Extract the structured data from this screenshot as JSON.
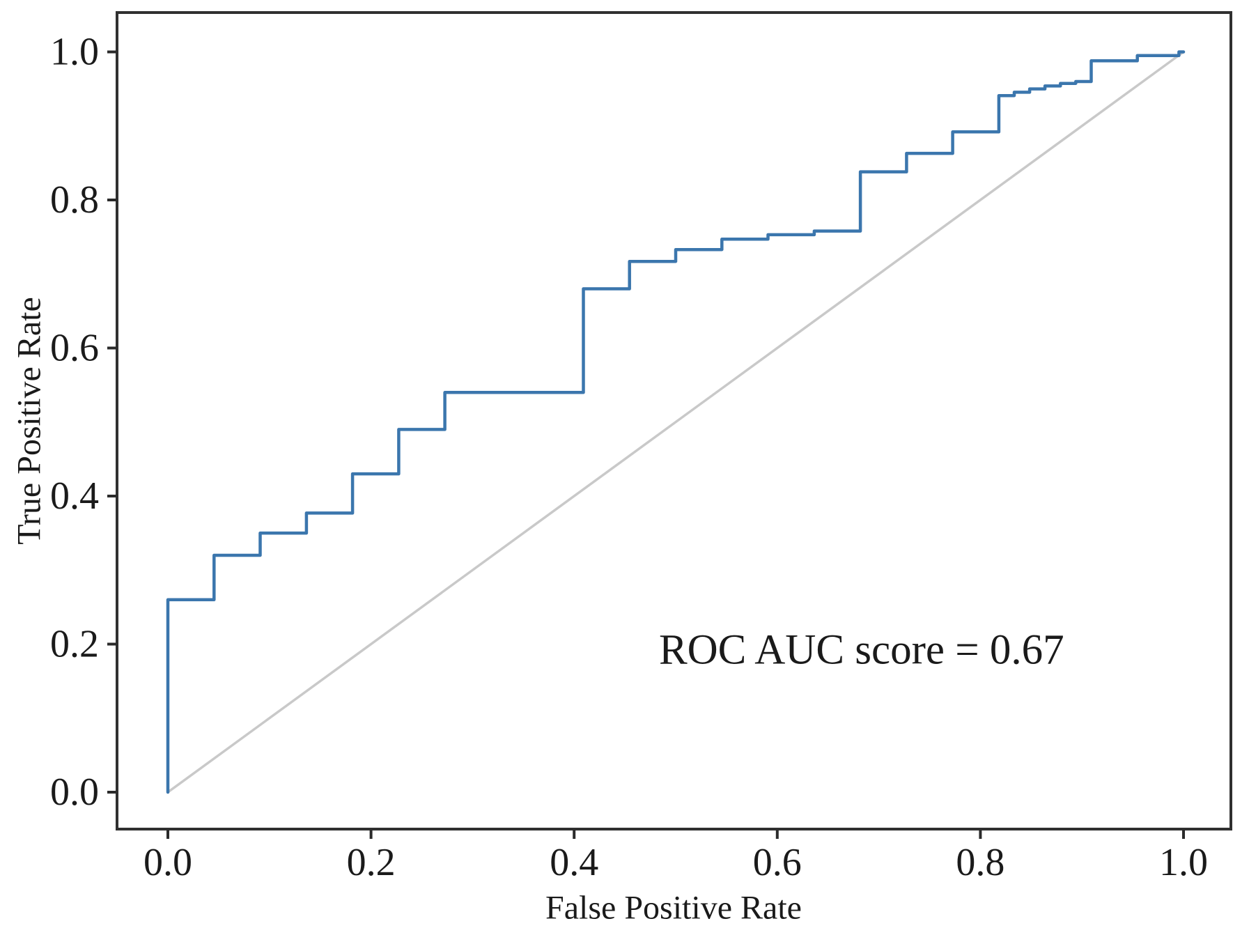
{
  "figure": {
    "background": "#ffffff",
    "frame_color": "#303030",
    "tick_color": "#2b2b2b",
    "text_color": "#1a1a1a"
  },
  "chart_data": {
    "type": "line",
    "title": "",
    "xlabel": "False Positive Rate",
    "ylabel": "True Positive Rate",
    "annotation": {
      "text": "ROC AUC score = 0.67",
      "x": 0.683,
      "y": 0.192
    },
    "auc": 0.67,
    "xlim": [
      -0.05,
      1.047
    ],
    "ylim": [
      -0.05,
      1.053
    ],
    "grid": false,
    "legend": "none",
    "x_ticks": {
      "values": [
        0.0,
        0.2,
        0.4,
        0.6,
        0.8,
        1.0
      ],
      "labels": [
        "0.0",
        "0.2",
        "0.4",
        "0.6",
        "0.8",
        "1.0"
      ]
    },
    "y_ticks": {
      "values": [
        0.0,
        0.2,
        0.4,
        0.6,
        0.8,
        1.0
      ],
      "labels": [
        "0.0",
        "0.2",
        "0.4",
        "0.6",
        "0.8",
        "1.0"
      ]
    },
    "series": [
      {
        "name": "chance-diagonal",
        "color": "#c9c9c9",
        "stroke_width": 3.5,
        "points": [
          [
            0,
            0
          ],
          [
            1,
            1
          ]
        ]
      },
      {
        "name": "roc-curve",
        "color": "#3b76ad",
        "stroke_width": 4.5,
        "points": [
          [
            0.0,
            0.0
          ],
          [
            0.0,
            0.26
          ],
          [
            0.0455,
            0.26
          ],
          [
            0.0455,
            0.32
          ],
          [
            0.0909,
            0.32
          ],
          [
            0.0909,
            0.35
          ],
          [
            0.1364,
            0.35
          ],
          [
            0.1364,
            0.377
          ],
          [
            0.1818,
            0.377
          ],
          [
            0.1818,
            0.43
          ],
          [
            0.2273,
            0.43
          ],
          [
            0.2273,
            0.49
          ],
          [
            0.2727,
            0.49
          ],
          [
            0.2727,
            0.54
          ],
          [
            0.4091,
            0.54
          ],
          [
            0.4091,
            0.68
          ],
          [
            0.4545,
            0.68
          ],
          [
            0.4545,
            0.717
          ],
          [
            0.5,
            0.717
          ],
          [
            0.5,
            0.733
          ],
          [
            0.5455,
            0.733
          ],
          [
            0.5455,
            0.747
          ],
          [
            0.5909,
            0.747
          ],
          [
            0.5909,
            0.753
          ],
          [
            0.6364,
            0.753
          ],
          [
            0.6364,
            0.758
          ],
          [
            0.6818,
            0.758
          ],
          [
            0.6818,
            0.838
          ],
          [
            0.7273,
            0.838
          ],
          [
            0.7273,
            0.863
          ],
          [
            0.7727,
            0.863
          ],
          [
            0.7727,
            0.892
          ],
          [
            0.8182,
            0.892
          ],
          [
            0.8182,
            0.941
          ],
          [
            0.8333,
            0.941
          ],
          [
            0.8333,
            0.9455
          ],
          [
            0.8485,
            0.9455
          ],
          [
            0.8485,
            0.95
          ],
          [
            0.8636,
            0.95
          ],
          [
            0.8636,
            0.954
          ],
          [
            0.8788,
            0.954
          ],
          [
            0.8788,
            0.9575
          ],
          [
            0.8939,
            0.9575
          ],
          [
            0.8939,
            0.96
          ],
          [
            0.9091,
            0.96
          ],
          [
            0.9091,
            0.988
          ],
          [
            0.9545,
            0.988
          ],
          [
            0.9545,
            0.995
          ],
          [
            0.9955,
            0.995
          ],
          [
            0.9955,
            1.0
          ],
          [
            1.0,
            1.0
          ]
        ]
      }
    ]
  }
}
